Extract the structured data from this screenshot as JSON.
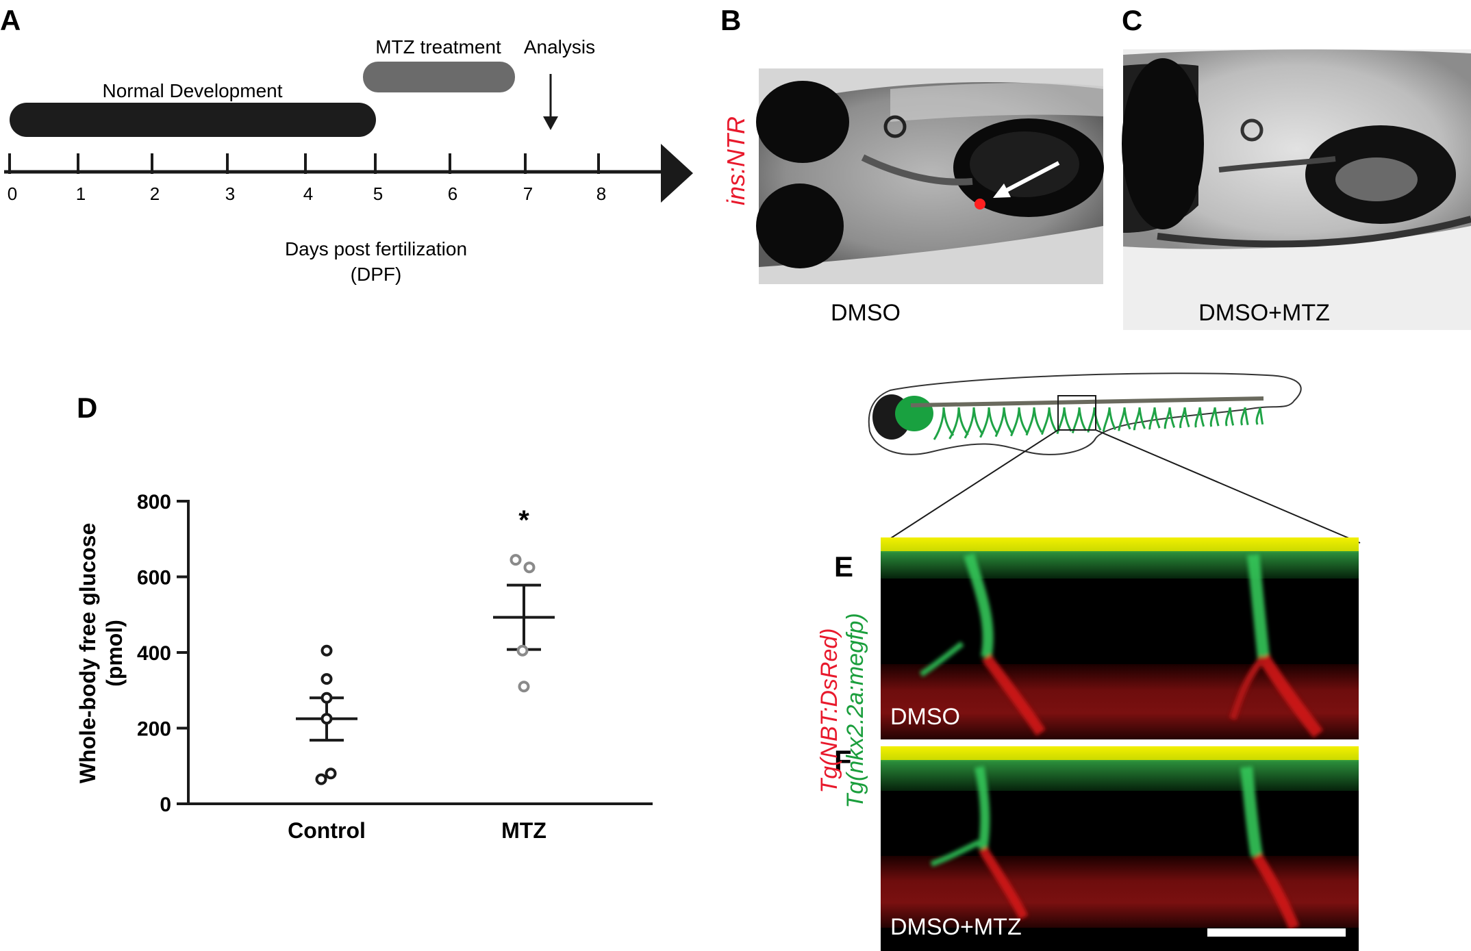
{
  "panels": {
    "A": {
      "letter": "A",
      "normal_label": "Normal Development",
      "mtz_label": "MTZ treatment",
      "analysis_label": "Analysis",
      "ticks": [
        "0",
        "1",
        "2",
        "3",
        "4",
        "5",
        "6",
        "7",
        "8"
      ],
      "axis_label_line1": "Days post fertilization",
      "axis_label_line2": "(DPF)",
      "colors": {
        "normal_bar": "#1c1c1c",
        "mtz_bar": "#6b6b6b"
      }
    },
    "B": {
      "letter": "B",
      "caption": "DMSO",
      "side_label": "ins:NTR",
      "side_label_color": "#e8192c"
    },
    "C": {
      "letter": "C",
      "caption": "DMSO+MTZ"
    },
    "D": {
      "letter": "D"
    },
    "E": {
      "letter": "E",
      "caption": "DMSO"
    },
    "F": {
      "letter": "F",
      "caption": "DMSO+MTZ"
    },
    "EF_side_label": {
      "red_part": "Tg(NBT:DsRed)",
      "green_part": "Tg(nkx2.2a:megfp)",
      "red_color": "#e8192c",
      "green_color": "#1a9e3c"
    }
  },
  "chart_data": {
    "type": "scatter",
    "title": "",
    "xlabel": "",
    "ylabel_line1": "Whole-body free glucose",
    "ylabel_line2": "(pmol)",
    "ylim": [
      0,
      800
    ],
    "yticks": [
      0,
      200,
      400,
      600,
      800
    ],
    "categories": [
      "Control",
      "MTZ"
    ],
    "series": [
      {
        "category": "Control",
        "points": [
          405,
          330,
          280,
          225,
          80,
          65
        ],
        "mean": 225,
        "sem_low": 168,
        "sem_high": 280,
        "marker_color": "#1a1a1a"
      },
      {
        "category": "MTZ",
        "points": [
          645,
          625,
          405,
          310
        ],
        "mean": 493,
        "sem_low": 408,
        "sem_high": 578,
        "marker_color": "#8a8a8a"
      }
    ],
    "annotation": {
      "text": "*",
      "category": "MTZ",
      "y": 755
    },
    "grid": false,
    "legend": "none"
  }
}
